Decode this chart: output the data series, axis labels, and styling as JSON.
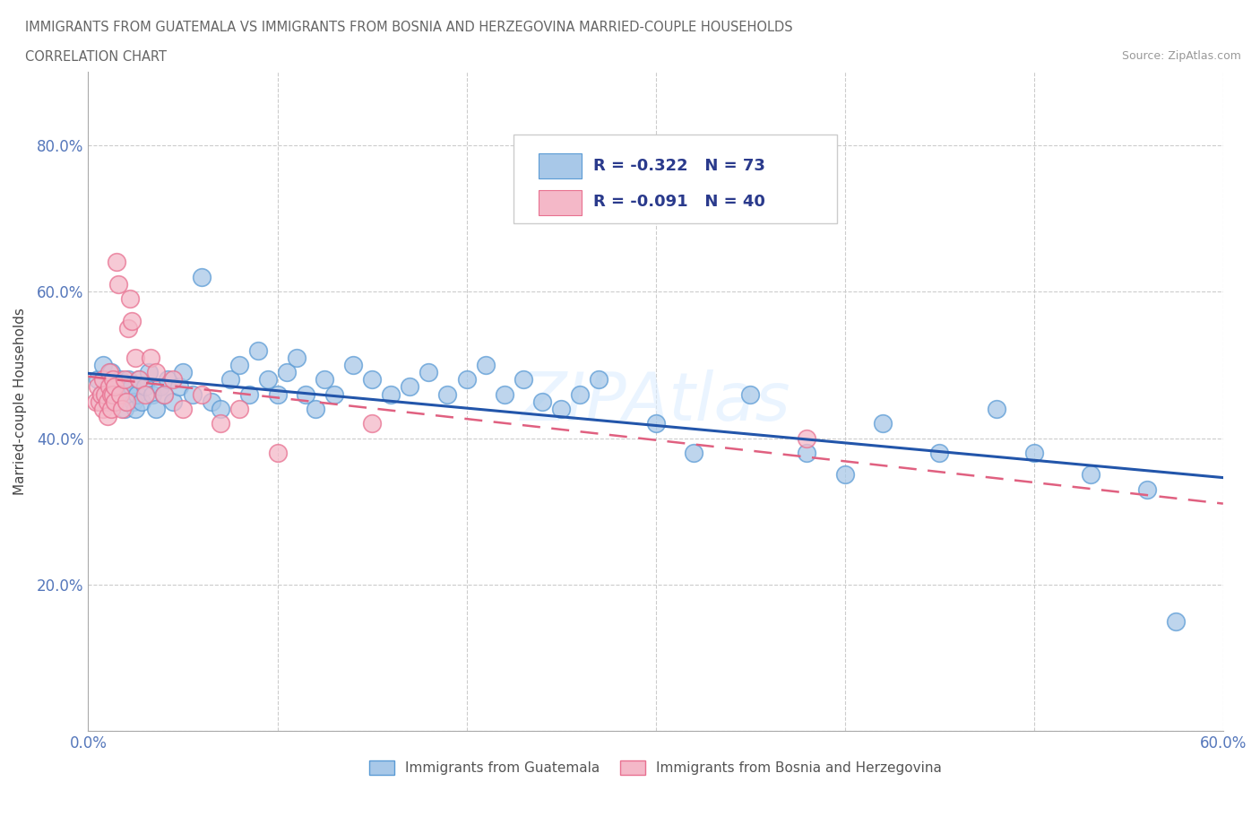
{
  "title_line1": "IMMIGRANTS FROM GUATEMALA VS IMMIGRANTS FROM BOSNIA AND HERZEGOVINA MARRIED-COUPLE HOUSEHOLDS",
  "title_line2": "CORRELATION CHART",
  "source": "Source: ZipAtlas.com",
  "ylabel": "Married-couple Households",
  "xlim": [
    0.0,
    0.6
  ],
  "ylim": [
    0.0,
    0.9
  ],
  "x_tick_positions": [
    0.0,
    0.1,
    0.2,
    0.3,
    0.4,
    0.5,
    0.6
  ],
  "x_tick_labels": [
    "0.0%",
    "",
    "",
    "",
    "",
    "",
    "60.0%"
  ],
  "y_tick_positions": [
    0.0,
    0.2,
    0.4,
    0.6,
    0.8
  ],
  "y_tick_labels": [
    "",
    "20.0%",
    "40.0%",
    "60.0%",
    "80.0%"
  ],
  "guatemala_color": "#a8c8e8",
  "guatemala_edge": "#5b9bd5",
  "bosnia_color": "#f4b8c8",
  "bosnia_edge": "#e87090",
  "line_guatemala_color": "#2255aa",
  "line_bosnia_color": "#e06080",
  "R_guatemala": -0.322,
  "N_guatemala": 73,
  "R_bosnia": -0.091,
  "N_bosnia": 40,
  "legend_text_color": "#2a3a8c",
  "tick_color": "#5577bb",
  "guatemala_x": [
    0.005,
    0.007,
    0.008,
    0.01,
    0.01,
    0.012,
    0.013,
    0.015,
    0.016,
    0.017,
    0.018,
    0.019,
    0.02,
    0.021,
    0.022,
    0.023,
    0.024,
    0.025,
    0.026,
    0.027,
    0.028,
    0.03,
    0.032,
    0.034,
    0.036,
    0.038,
    0.04,
    0.042,
    0.045,
    0.048,
    0.05,
    0.055,
    0.06,
    0.065,
    0.07,
    0.075,
    0.08,
    0.085,
    0.09,
    0.095,
    0.1,
    0.105,
    0.11,
    0.115,
    0.12,
    0.125,
    0.13,
    0.14,
    0.15,
    0.16,
    0.17,
    0.18,
    0.19,
    0.2,
    0.21,
    0.22,
    0.23,
    0.24,
    0.25,
    0.26,
    0.27,
    0.3,
    0.32,
    0.35,
    0.38,
    0.4,
    0.42,
    0.45,
    0.48,
    0.5,
    0.53,
    0.56,
    0.575
  ],
  "guatemala_y": [
    0.48,
    0.46,
    0.5,
    0.45,
    0.47,
    0.49,
    0.46,
    0.45,
    0.47,
    0.48,
    0.46,
    0.44,
    0.45,
    0.48,
    0.46,
    0.47,
    0.45,
    0.44,
    0.46,
    0.48,
    0.45,
    0.47,
    0.49,
    0.46,
    0.44,
    0.47,
    0.46,
    0.48,
    0.45,
    0.47,
    0.49,
    0.46,
    0.62,
    0.45,
    0.44,
    0.48,
    0.5,
    0.46,
    0.52,
    0.48,
    0.46,
    0.49,
    0.51,
    0.46,
    0.44,
    0.48,
    0.46,
    0.5,
    0.48,
    0.46,
    0.47,
    0.49,
    0.46,
    0.48,
    0.5,
    0.46,
    0.48,
    0.45,
    0.44,
    0.46,
    0.48,
    0.42,
    0.38,
    0.46,
    0.38,
    0.35,
    0.42,
    0.38,
    0.44,
    0.38,
    0.35,
    0.33,
    0.15
  ],
  "bosnia_x": [
    0.004,
    0.005,
    0.006,
    0.007,
    0.008,
    0.008,
    0.009,
    0.01,
    0.01,
    0.011,
    0.011,
    0.012,
    0.012,
    0.013,
    0.013,
    0.014,
    0.014,
    0.015,
    0.016,
    0.017,
    0.018,
    0.019,
    0.02,
    0.021,
    0.022,
    0.023,
    0.025,
    0.027,
    0.03,
    0.033,
    0.036,
    0.04,
    0.045,
    0.05,
    0.06,
    0.07,
    0.08,
    0.1,
    0.15,
    0.38
  ],
  "bosnia_y": [
    0.45,
    0.47,
    0.45,
    0.46,
    0.48,
    0.44,
    0.46,
    0.45,
    0.43,
    0.47,
    0.49,
    0.46,
    0.44,
    0.48,
    0.46,
    0.45,
    0.47,
    0.64,
    0.61,
    0.46,
    0.44,
    0.48,
    0.45,
    0.55,
    0.59,
    0.56,
    0.51,
    0.48,
    0.46,
    0.51,
    0.49,
    0.46,
    0.48,
    0.44,
    0.46,
    0.42,
    0.44,
    0.38,
    0.42,
    0.4
  ]
}
